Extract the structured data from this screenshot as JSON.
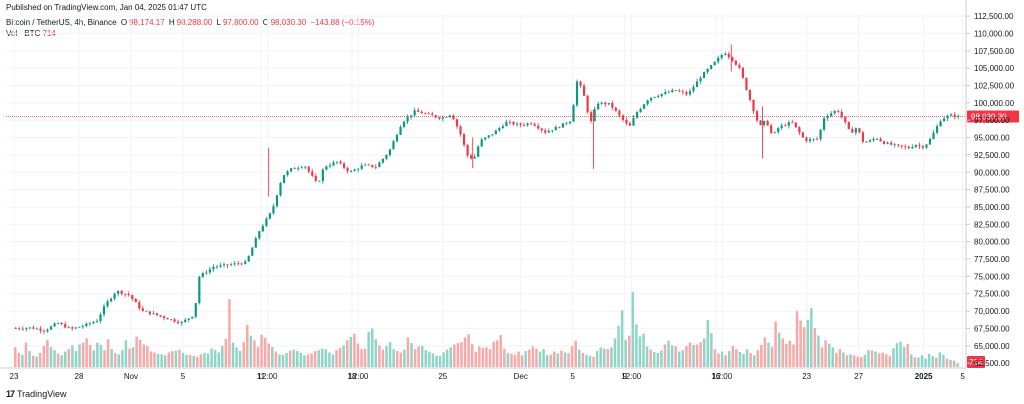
{
  "header": {
    "published": "Published on TradingView.com, Jan 04, 2025 01:47 UTC"
  },
  "legend": {
    "symbol": "Bitcoin / TetherUS, 4h, Binance",
    "o_label": "O",
    "o_value": "98,174.17",
    "h_label": "H",
    "h_value": "98,288.00",
    "l_label": "L",
    "l_value": "97,800.00",
    "c_label": "C",
    "c_value": "98,030.30",
    "change": "−143.88 (−0.15%)",
    "vol_label": "Vol · BTC",
    "vol_value": "714"
  },
  "footer": {
    "logo_text": "TradingView",
    "logo_mark": "17"
  },
  "colors": {
    "up": "#089981",
    "down": "#f23645",
    "up_volume": "#8fd4c6",
    "down_volume": "#f7a9a7",
    "grid": "#f0f3fa",
    "price_line": "#f23645"
  },
  "chart_data": {
    "type": "candlestick",
    "title": "Bitcoin / TetherUS, 4h, Binance",
    "y_axis": {
      "ticks": [
        "112,500.00",
        "110,000.00",
        "107,500.00",
        "105,000.00",
        "102,500.00",
        "100,000.00",
        "97,500.00",
        "95,000.00",
        "92,500.00",
        "90,000.00",
        "87,500.00",
        "85,000.00",
        "82,500.00",
        "80,000.00",
        "77,500.00",
        "75,000.00",
        "72,500.00",
        "70,000.00",
        "67,500.00",
        "65,000.00",
        "62,500.00"
      ],
      "range": [
        61800,
        112800
      ]
    },
    "x_axis": {
      "ticks": [
        {
          "label": "23",
          "x": 0.0
        },
        {
          "label": "28",
          "x": 5.0
        },
        {
          "label": "Nov",
          "x": 9.0
        },
        {
          "label": "5",
          "x": 13.0
        },
        {
          "label": "11",
          "x": 19.0
        },
        {
          "label": "12:00",
          "x": 19.5
        },
        {
          "label": "18",
          "x": 26.0
        },
        {
          "label": "12:00",
          "x": 26.5
        },
        {
          "label": "25",
          "x": 33.0
        },
        {
          "label": "Dec",
          "x": 39.0
        },
        {
          "label": "5",
          "x": 43.0
        },
        {
          "label": "9",
          "x": 47.0
        },
        {
          "label": "12:00",
          "x": 47.5
        },
        {
          "label": "16",
          "x": 54.0
        },
        {
          "label": "12:00",
          "x": 54.5
        },
        {
          "label": "23",
          "x": 61.0
        },
        {
          "label": "27",
          "x": 65.0
        },
        {
          "label": "2025",
          "x": 70.0
        },
        {
          "label": "5",
          "x": 73.0
        }
      ],
      "range": [
        0,
        72.8
      ]
    },
    "price_path": [
      [
        0.0,
        67500
      ],
      [
        1.5,
        67600
      ],
      [
        2.5,
        67200
      ],
      [
        3.5,
        68300
      ],
      [
        4.5,
        67400
      ],
      [
        5.5,
        67900
      ],
      [
        6.5,
        68600
      ],
      [
        7.2,
        71000
      ],
      [
        8.0,
        72900
      ],
      [
        9.0,
        72300
      ],
      [
        10.0,
        70000
      ],
      [
        11.0,
        69500
      ],
      [
        12.0,
        68900
      ],
      [
        13.0,
        68300
      ],
      [
        14.0,
        69500
      ],
      [
        14.4,
        75000
      ],
      [
        15.5,
        76400
      ],
      [
        16.5,
        76600
      ],
      [
        17.5,
        76900
      ],
      [
        18.0,
        77000
      ],
      [
        19.0,
        81500
      ],
      [
        20.0,
        84500
      ],
      [
        20.8,
        89500
      ],
      [
        21.5,
        90500
      ],
      [
        22.5,
        91000
      ],
      [
        23.5,
        88200
      ],
      [
        24.0,
        90800
      ],
      [
        25.0,
        91500
      ],
      [
        26.0,
        90000
      ],
      [
        27.0,
        91000
      ],
      [
        28.0,
        90800
      ],
      [
        29.0,
        93000
      ],
      [
        30.0,
        97200
      ],
      [
        31.0,
        98800
      ],
      [
        32.0,
        98300
      ],
      [
        33.0,
        97800
      ],
      [
        33.8,
        98400
      ],
      [
        34.5,
        95500
      ],
      [
        35.0,
        92500
      ],
      [
        35.5,
        91800
      ],
      [
        36.0,
        94500
      ],
      [
        37.0,
        95600
      ],
      [
        38.0,
        97200
      ],
      [
        39.0,
        96800
      ],
      [
        40.0,
        97100
      ],
      [
        41.0,
        95800
      ],
      [
        42.0,
        96500
      ],
      [
        43.0,
        97500
      ],
      [
        43.5,
        103500
      ],
      [
        44.0,
        101000
      ],
      [
        44.5,
        97000
      ],
      [
        45.0,
        100000
      ],
      [
        46.0,
        99800
      ],
      [
        47.0,
        97500
      ],
      [
        47.5,
        96500
      ],
      [
        48.0,
        98500
      ],
      [
        49.0,
        100700
      ],
      [
        50.0,
        101300
      ],
      [
        51.0,
        101800
      ],
      [
        52.0,
        101200
      ],
      [
        53.0,
        103800
      ],
      [
        54.0,
        105700
      ],
      [
        54.8,
        107300
      ],
      [
        55.5,
        106100
      ],
      [
        56.0,
        104800
      ],
      [
        56.8,
        100300
      ],
      [
        57.5,
        96500
      ],
      [
        58.0,
        97500
      ],
      [
        58.5,
        95200
      ],
      [
        59.0,
        96500
      ],
      [
        60.0,
        97200
      ],
      [
        61.0,
        94600
      ],
      [
        62.0,
        94800
      ],
      [
        62.5,
        98000
      ],
      [
        63.5,
        99000
      ],
      [
        64.0,
        97500
      ],
      [
        64.5,
        95600
      ],
      [
        65.0,
        96500
      ],
      [
        65.5,
        94300
      ],
      [
        66.0,
        94500
      ],
      [
        66.5,
        95000
      ],
      [
        67.0,
        94300
      ],
      [
        68.0,
        93800
      ],
      [
        69.0,
        93500
      ],
      [
        69.5,
        94000
      ],
      [
        70.0,
        93600
      ],
      [
        70.5,
        94300
      ],
      [
        71.0,
        96000
      ],
      [
        71.5,
        97700
      ],
      [
        72.2,
        98200
      ],
      [
        72.8,
        98030
      ]
    ],
    "spikes": [
      {
        "x": 44.6,
        "low": 90500,
        "high": 99000
      },
      {
        "x": 55.2,
        "low": 104500,
        "high": 108400
      },
      {
        "x": 35.3,
        "low": 90600,
        "high": 95000
      },
      {
        "x": 19.6,
        "low": 86500,
        "high": 93500
      },
      {
        "x": 57.6,
        "low": 92000,
        "high": 99500
      }
    ],
    "volume": {
      "max": 16000,
      "values": [
        4200,
        3000,
        2600,
        5200,
        3400,
        2400,
        2200,
        3000,
        4500,
        5800,
        4300,
        3600,
        2800,
        2500,
        3300,
        3800,
        4600,
        3400,
        4800,
        5200,
        6100,
        4700,
        3500,
        5200,
        4700,
        3600,
        5900,
        3800,
        3000,
        2700,
        3600,
        5700,
        3900,
        4200,
        6500,
        5800,
        4800,
        4500,
        3300,
        3100,
        2800,
        2700,
        2500,
        3100,
        3400,
        3500,
        3700,
        3000,
        2600,
        2600,
        2400,
        2200,
        2700,
        3000,
        2900,
        3900,
        3600,
        3100,
        4500,
        6000,
        14500,
        5200,
        4200,
        3400,
        5300,
        9000,
        6700,
        5700,
        4300,
        6900,
        6200,
        5000,
        4300,
        3300,
        2700,
        2600,
        3000,
        3500,
        3700,
        3400,
        3000,
        2500,
        2700,
        2900,
        3400,
        3600,
        3900,
        3800,
        3100,
        2700,
        3600,
        4100,
        4600,
        5700,
        6400,
        7100,
        5000,
        3800,
        3900,
        7500,
        8200,
        5900,
        4600,
        3700,
        4500,
        5300,
        3800,
        3400,
        3100,
        3700,
        6300,
        5100,
        3800,
        4400,
        4500,
        3600,
        3300,
        2900,
        2400,
        2400,
        3100,
        3700,
        4200,
        4800,
        5100,
        5300,
        6300,
        7000,
        4900,
        3200,
        4400,
        4100,
        4200,
        3800,
        5400,
        5700,
        6800,
        3900,
        3000,
        2800,
        2600,
        3300,
        2500,
        3400,
        3700,
        4400,
        3900,
        3300,
        3800,
        2500,
        2600,
        3300,
        2900,
        3500,
        3100,
        2900,
        4500,
        5600,
        3700,
        3000,
        2600,
        2400,
        2200,
        3400,
        4200,
        3900,
        3800,
        4200,
        6100,
        8800,
        12100,
        5800,
        6700,
        16000,
        9100,
        6500,
        7100,
        4400,
        3700,
        3200,
        3000,
        3500,
        4800,
        5600,
        4600,
        4400,
        3300,
        3600,
        4500,
        5200,
        4700,
        4800,
        5300,
        6100,
        10000,
        7200,
        3800,
        2900,
        3300,
        2500,
        3400,
        4500,
        3800,
        3200,
        2800,
        3800,
        3000,
        2500,
        3600,
        4700,
        6300,
        5200,
        4300,
        9700,
        7300,
        6100,
        4900,
        5600,
        4800,
        11900,
        9900,
        8500,
        10100,
        12600,
        8300,
        6700,
        4200,
        5700,
        5000,
        4200,
        3000,
        3800,
        3100,
        2500,
        2700,
        2500,
        2200,
        2100,
        2600,
        3600,
        3500,
        3300,
        2900,
        3000,
        2700,
        2400,
        4000,
        5100,
        5400,
        4300,
        4900,
        2700,
        2100,
        2000,
        2500,
        1800,
        2800,
        2300,
        2000,
        3100,
        2600,
        1800,
        1500,
        1400,
        800
      ],
      "last_value": 714
    },
    "last_price": "98,030.30",
    "last_price_value": 98030.3,
    "grid": true
  }
}
